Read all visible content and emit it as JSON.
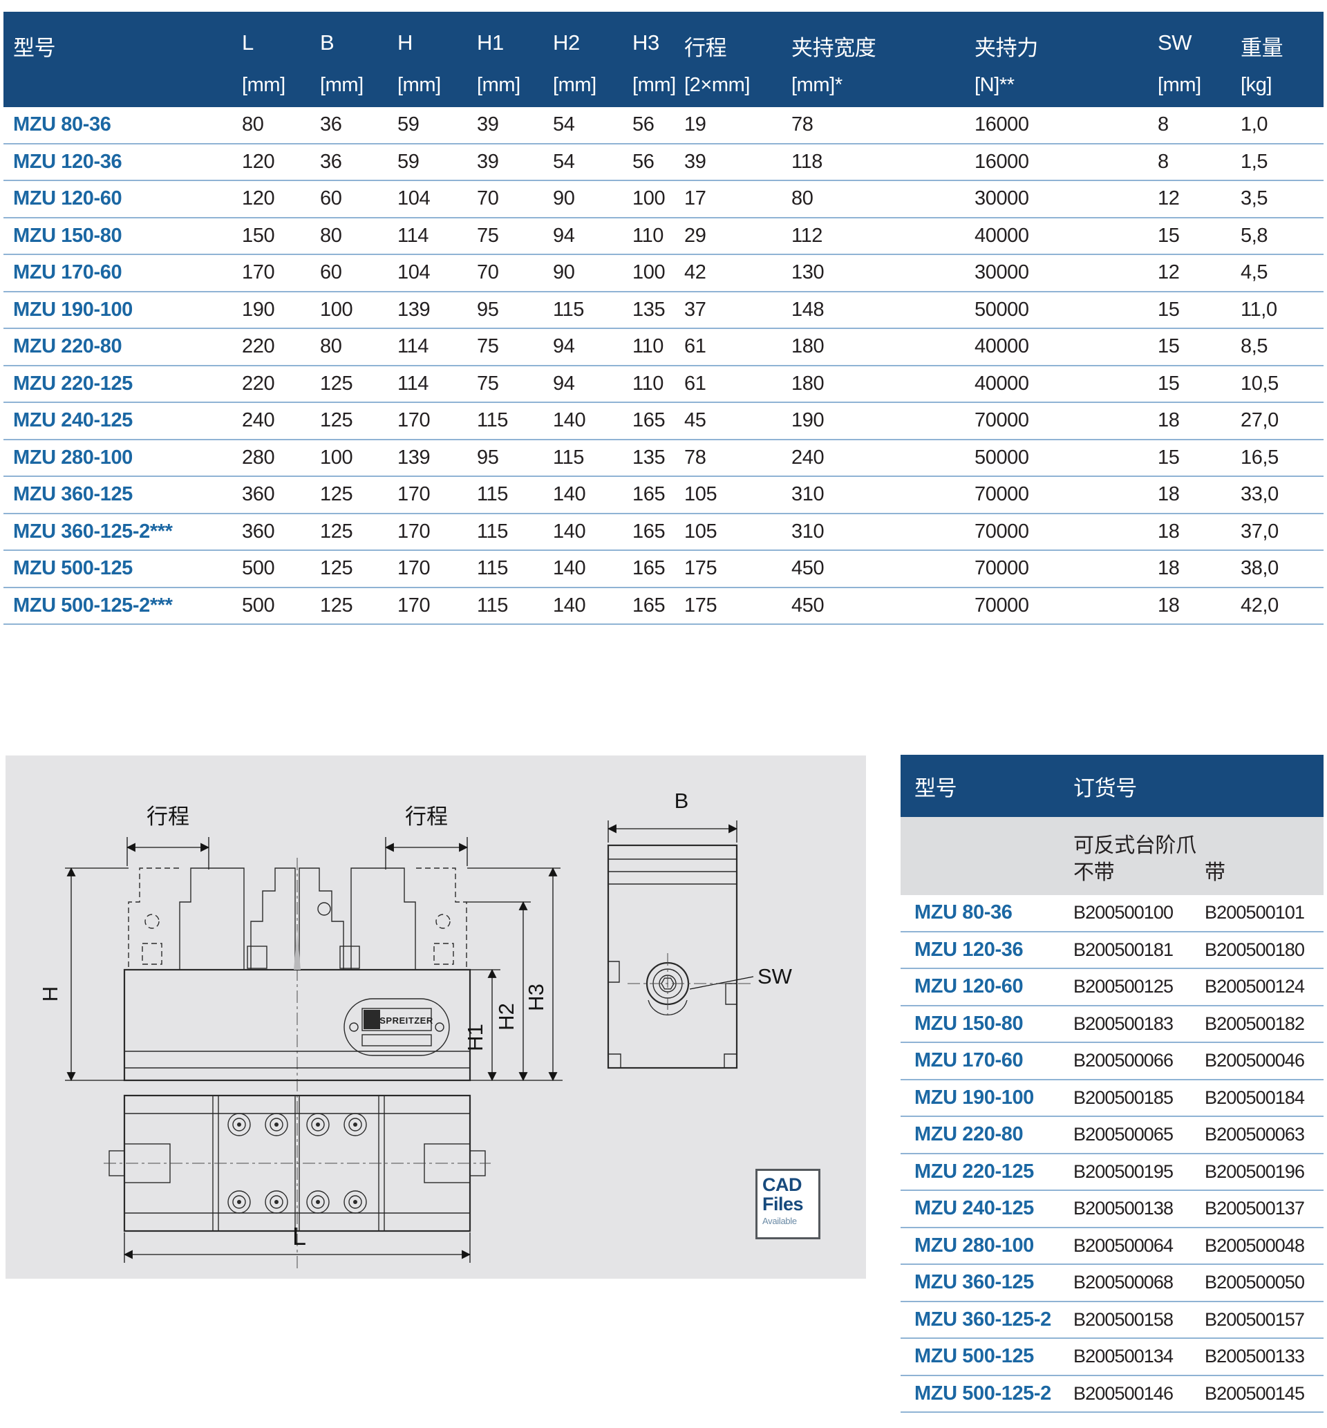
{
  "colors": {
    "header_blue": "#174a7d",
    "model_blue": "#1b67a3",
    "separator_blue": "#8fb3d4",
    "panel_gray": "#e4e4e6",
    "subheader_gray": "#dcdddf",
    "text_dark": "#231f20"
  },
  "spec_table": {
    "columns": [
      {
        "label": "型号",
        "unit": ""
      },
      {
        "label": "L",
        "unit": "[mm]"
      },
      {
        "label": "B",
        "unit": "[mm]"
      },
      {
        "label": "H",
        "unit": "[mm]"
      },
      {
        "label": "H1",
        "unit": "[mm]"
      },
      {
        "label": "H2",
        "unit": "[mm]"
      },
      {
        "label": "H3",
        "unit": "[mm]"
      },
      {
        "label": "行程",
        "unit": "[2×mm]"
      },
      {
        "label": "夹持宽度",
        "unit": "[mm]*"
      },
      {
        "label": "夹持力",
        "unit": "[N]**"
      },
      {
        "label": "SW",
        "unit": "[mm]"
      },
      {
        "label": "重量",
        "unit": "[kg]"
      }
    ],
    "rows": [
      {
        "model": "MZU 80-36",
        "values": [
          "80",
          "36",
          "59",
          "39",
          "54",
          "56",
          "19",
          "78",
          "16000",
          "8",
          "1,0"
        ]
      },
      {
        "model": "MZU 120-36",
        "values": [
          "120",
          "36",
          "59",
          "39",
          "54",
          "56",
          "39",
          "118",
          "16000",
          "8",
          "1,5"
        ]
      },
      {
        "model": "MZU 120-60",
        "values": [
          "120",
          "60",
          "104",
          "70",
          "90",
          "100",
          "17",
          "80",
          "30000",
          "12",
          "3,5"
        ]
      },
      {
        "model": "MZU 150-80",
        "values": [
          "150",
          "80",
          "114",
          "75",
          "94",
          "110",
          "29",
          "112",
          "40000",
          "15",
          "5,8"
        ]
      },
      {
        "model": "MZU 170-60",
        "values": [
          "170",
          "60",
          "104",
          "70",
          "90",
          "100",
          "42",
          "130",
          "30000",
          "12",
          "4,5"
        ]
      },
      {
        "model": "MZU 190-100",
        "values": [
          "190",
          "100",
          "139",
          "95",
          "115",
          "135",
          "37",
          "148",
          "50000",
          "15",
          "11,0"
        ]
      },
      {
        "model": "MZU 220-80",
        "values": [
          "220",
          "80",
          "114",
          "75",
          "94",
          "110",
          "61",
          "180",
          "40000",
          "15",
          "8,5"
        ]
      },
      {
        "model": "MZU 220-125",
        "values": [
          "220",
          "125",
          "114",
          "75",
          "94",
          "110",
          "61",
          "180",
          "40000",
          "15",
          "10,5"
        ]
      },
      {
        "model": "MZU 240-125",
        "values": [
          "240",
          "125",
          "170",
          "115",
          "140",
          "165",
          "45",
          "190",
          "70000",
          "18",
          "27,0"
        ]
      },
      {
        "model": "MZU 280-100",
        "values": [
          "280",
          "100",
          "139",
          "95",
          "115",
          "135",
          "78",
          "240",
          "50000",
          "15",
          "16,5"
        ]
      },
      {
        "model": "MZU 360-125",
        "values": [
          "360",
          "125",
          "170",
          "115",
          "140",
          "165",
          "105",
          "310",
          "70000",
          "18",
          "33,0"
        ]
      },
      {
        "model": "MZU 360-125-2***",
        "values": [
          "360",
          "125",
          "170",
          "115",
          "140",
          "165",
          "105",
          "310",
          "70000",
          "18",
          "37,0"
        ]
      },
      {
        "model": "MZU 500-125",
        "values": [
          "500",
          "125",
          "170",
          "115",
          "140",
          "165",
          "175",
          "450",
          "70000",
          "18",
          "38,0"
        ]
      },
      {
        "model": "MZU 500-125-2***",
        "values": [
          "500",
          "125",
          "170",
          "115",
          "140",
          "165",
          "175",
          "450",
          "70000",
          "18",
          "42,0"
        ]
      }
    ]
  },
  "order_table": {
    "col_model": "型号",
    "col_order": "订货号",
    "sub_header": "可反式台阶爪",
    "col_without": "不带",
    "col_with": "带",
    "rows": [
      {
        "model": "MZU 80-36",
        "without": "B200500100",
        "with": "B200500101"
      },
      {
        "model": "MZU 120-36",
        "without": "B200500181",
        "with": "B200500180"
      },
      {
        "model": "MZU 120-60",
        "without": "B200500125",
        "with": "B200500124"
      },
      {
        "model": "MZU 150-80",
        "without": "B200500183",
        "with": "B200500182"
      },
      {
        "model": "MZU 170-60",
        "without": "B200500066",
        "with": "B200500046"
      },
      {
        "model": "MZU 190-100",
        "without": "B200500185",
        "with": "B200500184"
      },
      {
        "model": "MZU 220-80",
        "without": "B200500065",
        "with": "B200500063"
      },
      {
        "model": "MZU 220-125",
        "without": "B200500195",
        "with": "B200500196"
      },
      {
        "model": "MZU 240-125",
        "without": "B200500138",
        "with": "B200500137"
      },
      {
        "model": "MZU 280-100",
        "without": "B200500064",
        "with": "B200500048"
      },
      {
        "model": "MZU 360-125",
        "without": "B200500068",
        "with": "B200500050"
      },
      {
        "model": "MZU 360-125-2",
        "without": "B200500158",
        "with": "B200500157"
      },
      {
        "model": "MZU 500-125",
        "without": "B200500134",
        "with": "B200500133"
      },
      {
        "model": "MZU 500-125-2",
        "without": "B200500146",
        "with": "B200500145"
      }
    ]
  },
  "drawing": {
    "labels": {
      "stroke_left": "行程",
      "stroke_right": "行程",
      "H": "H",
      "H1": "H1",
      "H2": "H2",
      "H3": "H3",
      "B": "B",
      "SW": "SW",
      "L": "L"
    },
    "nameplate": "SPREITZER",
    "cad_badge": {
      "line1": "CAD",
      "line2": "Files",
      "line3": "Available"
    }
  }
}
